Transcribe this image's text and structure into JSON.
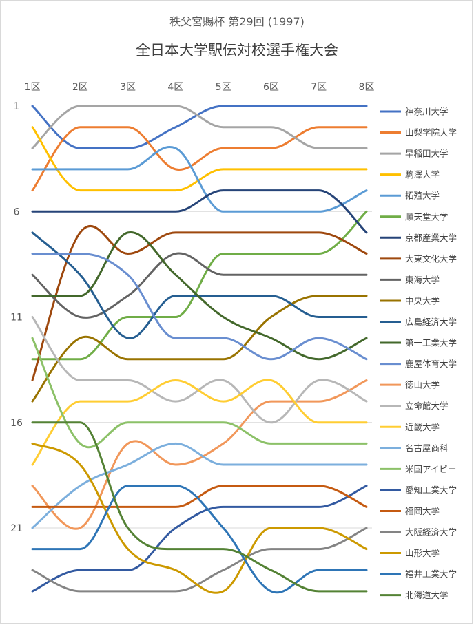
{
  "header": {
    "subtitle": "秩父宮賜杯 第29回 (1997)",
    "title": "全日本大学駅伝対校選手権大会"
  },
  "chart_data": {
    "type": "line",
    "title": "全日本大学駅伝対校選手権大会",
    "subtitle": "秩父宮賜杯 第29回 (1997)",
    "categories": [
      "1区",
      "2区",
      "3区",
      "4区",
      "5区",
      "6区",
      "7区",
      "8区"
    ],
    "y_ticks": [
      "1",
      "6",
      "11",
      "16",
      "21"
    ],
    "y_tick_values": [
      1,
      6,
      11,
      16,
      21
    ],
    "ylim": [
      1,
      24
    ],
    "y_reversed": true,
    "x_axis_position": "top",
    "grid": true,
    "legend_position": "right",
    "series": [
      {
        "name": "神奈川大学",
        "color": "#4472C4",
        "values": [
          1,
          3,
          3,
          2,
          1,
          1,
          1,
          1
        ]
      },
      {
        "name": "山梨学院大学",
        "color": "#ED7D31",
        "values": [
          5,
          2,
          2,
          4,
          3,
          3,
          2,
          2
        ]
      },
      {
        "name": "早稲田大学",
        "color": "#A5A5A5",
        "values": [
          3,
          1,
          1,
          1,
          2,
          2,
          3,
          3
        ]
      },
      {
        "name": "駒澤大学",
        "color": "#FFC000",
        "values": [
          2,
          5,
          5,
          5,
          4,
          4,
          4,
          4
        ]
      },
      {
        "name": "拓殖大学",
        "color": "#5B9BD5",
        "values": [
          4,
          4,
          4,
          3,
          6,
          6,
          6,
          5
        ]
      },
      {
        "name": "順天堂大学",
        "color": "#70AD47",
        "values": [
          13,
          13,
          11,
          11,
          8,
          8,
          8,
          6
        ]
      },
      {
        "name": "京都産業大学",
        "color": "#264478",
        "values": [
          6,
          6,
          6,
          6,
          5,
          5,
          5,
          7
        ]
      },
      {
        "name": "大東文化大学",
        "color": "#9E480E",
        "values": [
          14,
          7,
          8,
          7,
          7,
          7,
          7,
          8
        ]
      },
      {
        "name": "東海大学",
        "color": "#636363",
        "values": [
          9,
          11,
          10,
          8,
          9,
          9,
          9,
          9
        ]
      },
      {
        "name": "中央大学",
        "color": "#997300",
        "values": [
          15,
          12,
          13,
          13,
          13,
          11,
          10,
          10
        ]
      },
      {
        "name": "広島経済大学",
        "color": "#255E91",
        "values": [
          7,
          9,
          12,
          10,
          10,
          10,
          11,
          11
        ]
      },
      {
        "name": "第一工業大学",
        "color": "#43682B",
        "values": [
          10,
          10,
          7,
          9,
          11,
          12,
          13,
          12
        ]
      },
      {
        "name": "鹿屋体育大学",
        "color": "#698ED0",
        "values": [
          8,
          8,
          9,
          12,
          12,
          13,
          12,
          13
        ]
      },
      {
        "name": "徳山大学",
        "color": "#F1975A",
        "values": [
          19,
          21,
          17,
          18,
          17,
          15,
          15,
          14
        ]
      },
      {
        "name": "立命館大学",
        "color": "#B7B7B7",
        "values": [
          11,
          14,
          14,
          15,
          14,
          16,
          14,
          15
        ]
      },
      {
        "name": "近畿大学",
        "color": "#FFCD33",
        "values": [
          18,
          15,
          15,
          14,
          15,
          14,
          16,
          16
        ]
      },
      {
        "name": "名古屋商科",
        "color": "#7CAFDD",
        "values": [
          21,
          19,
          18,
          17,
          18,
          18,
          18,
          18
        ]
      },
      {
        "name": "米国アイビー",
        "color": "#8CC168",
        "values": [
          12,
          17,
          16,
          16,
          16,
          17,
          17,
          17
        ]
      },
      {
        "name": "愛知工業大学",
        "color": "#335AA1",
        "values": [
          24,
          23,
          23,
          21,
          20,
          20,
          20,
          19
        ]
      },
      {
        "name": "福岡大学",
        "color": "#C55A11",
        "values": [
          20,
          20,
          20,
          20,
          19,
          19,
          19,
          20
        ]
      },
      {
        "name": "大阪経済大学",
        "color": "#848484",
        "values": [
          23,
          24,
          24,
          24,
          23,
          22,
          22,
          21
        ]
      },
      {
        "name": "山形大学",
        "color": "#CC9900",
        "values": [
          17,
          18,
          22,
          23,
          24,
          21,
          21,
          22
        ]
      },
      {
        "name": "福井工業大学",
        "color": "#2E75B6",
        "values": [
          22,
          22,
          19,
          19,
          21,
          24,
          23,
          23
        ]
      },
      {
        "name": "北海道大学",
        "color": "#548235",
        "values": [
          16,
          16,
          21,
          22,
          22,
          23,
          24,
          24
        ]
      }
    ]
  }
}
